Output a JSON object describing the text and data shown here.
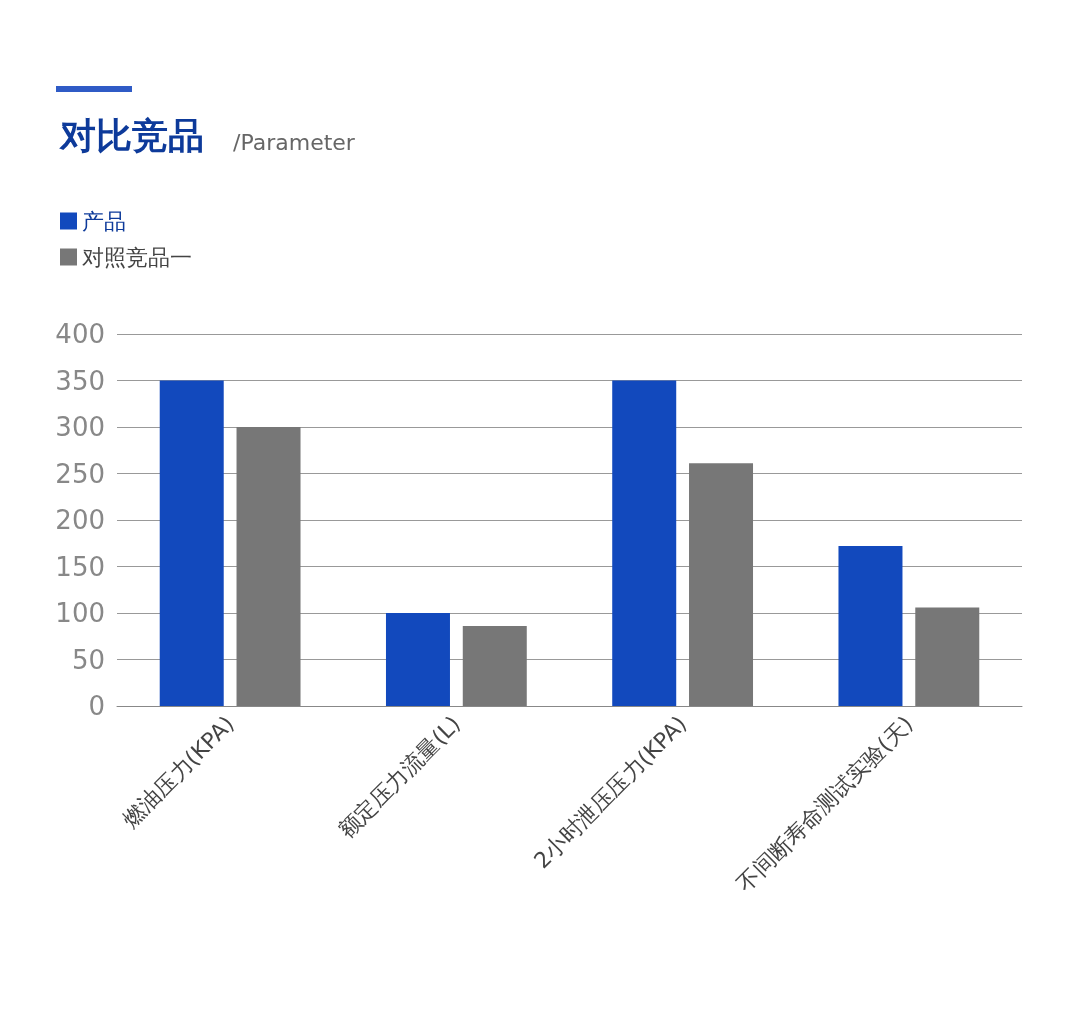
{
  "chart_data": {
    "type": "bar",
    "title": "对比竞品",
    "subtitle": "/Parameter",
    "categories": [
      "燃油压力(KPA)",
      "额定压力流量(L)",
      "2小时泄压压力(KPA)",
      "不间断寿命测试实验(天)"
    ],
    "series": [
      {
        "name": "产品",
        "color": "#1249bd",
        "values": [
          350,
          100,
          350,
          172
        ]
      },
      {
        "name": "对照竞品一",
        "color": "#777777",
        "values": [
          300,
          86,
          261,
          106
        ]
      }
    ],
    "ylim": [
      0,
      400
    ],
    "yticks": [
      0,
      50,
      100,
      150,
      200,
      250,
      300,
      350,
      400
    ],
    "grid": "y",
    "legend": "top left"
  }
}
